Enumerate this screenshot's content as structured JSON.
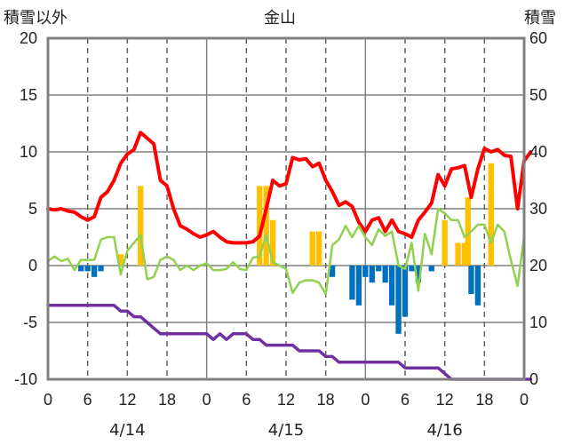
{
  "titles": {
    "left_axis_label": "積雪以外",
    "main_title": "金山",
    "right_axis_label": "積雪"
  },
  "colors": {
    "temperature": "#FF0000",
    "precip_positive": "#FFC000",
    "precip_negative": "#0070C0",
    "green_series": "#92D050",
    "snow_depth": "#7030A0",
    "grid": "#808080"
  },
  "chart_data": {
    "type": "bar",
    "x_ticks": [
      "0",
      "6",
      "12",
      "18",
      "0",
      "6",
      "12",
      "18",
      "0",
      "6",
      "12",
      "18",
      "0"
    ],
    "dates": [
      "4/14",
      "4/15",
      "4/16"
    ],
    "left_axis": {
      "ylim": [
        -10,
        20
      ],
      "ticks": [
        "20",
        "15",
        "10",
        "5",
        "0",
        "-5",
        "-10"
      ]
    },
    "right_axis": {
      "ylim": [
        0,
        60
      ],
      "ticks": [
        "60",
        "50",
        "40",
        "30",
        "20",
        "10",
        "0"
      ]
    },
    "x_range_hours": [
      0,
      72
    ],
    "series": [
      {
        "kind": "bar",
        "axis": "left",
        "color": "#FFC000",
        "points": [
          [
            11,
            1
          ],
          [
            14,
            7
          ],
          [
            32,
            7
          ],
          [
            33,
            7
          ],
          [
            34,
            4
          ],
          [
            40,
            3
          ],
          [
            41,
            3
          ],
          [
            60,
            4
          ],
          [
            62,
            2
          ],
          [
            63,
            2
          ],
          [
            63.5,
            6
          ],
          [
            67,
            9
          ]
        ]
      },
      {
        "kind": "bar",
        "axis": "left",
        "color": "#0070C0",
        "points": [
          [
            5,
            -0.5
          ],
          [
            6,
            -0.5
          ],
          [
            7,
            -1
          ],
          [
            8,
            -0.5
          ],
          [
            43,
            -1
          ],
          [
            46,
            -3
          ],
          [
            47,
            -3.5
          ],
          [
            48,
            -1
          ],
          [
            49,
            -1.5
          ],
          [
            50,
            -0.5
          ],
          [
            51,
            -1.5
          ],
          [
            52,
            -3.5
          ],
          [
            53,
            -6
          ],
          [
            54,
            -4.5
          ],
          [
            55,
            -0.5
          ],
          [
            56,
            -1.5
          ],
          [
            58,
            -0.5
          ],
          [
            64,
            -2.5
          ],
          [
            65,
            -3.5
          ]
        ]
      },
      {
        "kind": "line",
        "axis": "left",
        "color": "#FF0000",
        "width": 4,
        "points": [
          [
            0,
            5
          ],
          [
            1,
            4.9
          ],
          [
            2,
            5
          ],
          [
            3,
            4.8
          ],
          [
            4,
            4.7
          ],
          [
            5,
            4.3
          ],
          [
            6,
            4
          ],
          [
            7,
            4.3
          ],
          [
            8,
            6
          ],
          [
            9,
            6.5
          ],
          [
            10,
            7.5
          ],
          [
            11,
            9
          ],
          [
            12,
            9.8
          ],
          [
            13,
            10.2
          ],
          [
            14,
            11.7
          ],
          [
            15,
            11.2
          ],
          [
            16,
            10.7
          ],
          [
            17,
            7.5
          ],
          [
            18,
            7
          ],
          [
            19,
            5
          ],
          [
            20,
            3.5
          ],
          [
            21,
            3.2
          ],
          [
            22,
            2.8
          ],
          [
            23,
            2.5
          ],
          [
            24,
            2.7
          ],
          [
            25,
            3
          ],
          [
            26,
            2.5
          ],
          [
            27,
            2.1
          ],
          [
            28,
            2
          ],
          [
            29,
            2
          ],
          [
            30,
            2
          ],
          [
            31,
            2.1
          ],
          [
            32,
            2.6
          ],
          [
            33,
            5
          ],
          [
            34,
            7.5
          ],
          [
            35,
            7
          ],
          [
            36,
            7.2
          ],
          [
            37,
            9.5
          ],
          [
            38,
            9.3
          ],
          [
            39,
            9.4
          ],
          [
            40,
            8.7
          ],
          [
            41,
            9
          ],
          [
            42,
            7.5
          ],
          [
            43,
            6.5
          ],
          [
            44,
            5.3
          ],
          [
            45,
            5.6
          ],
          [
            46,
            5.2
          ],
          [
            47,
            3.8
          ],
          [
            48,
            3
          ],
          [
            49,
            4
          ],
          [
            50,
            4.2
          ],
          [
            51,
            3
          ],
          [
            52,
            4
          ],
          [
            53,
            3
          ],
          [
            54,
            2.8
          ],
          [
            55,
            2.5
          ],
          [
            56,
            4
          ],
          [
            57,
            4.7
          ],
          [
            58,
            5.5
          ],
          [
            59,
            8
          ],
          [
            60,
            7
          ],
          [
            61,
            8.5
          ],
          [
            62,
            8.6
          ],
          [
            63,
            8.8
          ],
          [
            64,
            6
          ],
          [
            65,
            8.5
          ],
          [
            66,
            10.3
          ],
          [
            67,
            10
          ],
          [
            68,
            10.2
          ],
          [
            69,
            9.7
          ],
          [
            70,
            9.6
          ],
          [
            71,
            5
          ],
          [
            72,
            9.2
          ],
          [
            73,
            10
          ]
        ]
      },
      {
        "kind": "line",
        "axis": "left",
        "color": "#92D050",
        "width": 2.5,
        "points": [
          [
            0,
            0.4
          ],
          [
            1,
            0.8
          ],
          [
            2,
            0.4
          ],
          [
            3,
            0.6
          ],
          [
            4,
            -0.4
          ],
          [
            5,
            0.5
          ],
          [
            6,
            0.5
          ],
          [
            7,
            0.5
          ],
          [
            8,
            2.3
          ],
          [
            9,
            2.5
          ],
          [
            10,
            2.5
          ],
          [
            11,
            -0.8
          ],
          [
            12,
            1.3
          ],
          [
            13,
            2
          ],
          [
            14,
            2.7
          ],
          [
            15,
            -1.2
          ],
          [
            16,
            -1
          ],
          [
            17,
            0.5
          ],
          [
            18,
            0.8
          ],
          [
            19,
            0.5
          ],
          [
            20,
            -0.4
          ],
          [
            21,
            0
          ],
          [
            22,
            -0.4
          ],
          [
            23,
            0
          ],
          [
            24,
            0.2
          ],
          [
            25,
            -0.4
          ],
          [
            26,
            -0.4
          ],
          [
            27,
            -0.3
          ],
          [
            28,
            0.3
          ],
          [
            29,
            -0.3
          ],
          [
            30,
            -0.4
          ],
          [
            31,
            0.7
          ],
          [
            32,
            0.8
          ],
          [
            33,
            2.7
          ],
          [
            34,
            0.3
          ],
          [
            35,
            0
          ],
          [
            36,
            -0.3
          ],
          [
            37,
            -2.4
          ],
          [
            38,
            -1.5
          ],
          [
            39,
            -1.3
          ],
          [
            40,
            -1.3
          ],
          [
            41,
            -1.5
          ],
          [
            42,
            -2.5
          ],
          [
            43,
            1.8
          ],
          [
            44,
            2.3
          ],
          [
            45,
            3.5
          ],
          [
            46,
            2.5
          ],
          [
            47,
            3.5
          ],
          [
            48,
            2.5
          ],
          [
            49,
            1.8
          ],
          [
            50,
            3.2
          ],
          [
            51,
            2.6
          ],
          [
            52,
            3
          ],
          [
            53,
            0
          ],
          [
            54,
            -0.3
          ],
          [
            55,
            2
          ],
          [
            56,
            -2.2
          ],
          [
            57,
            2.8
          ],
          [
            58,
            1
          ],
          [
            59,
            5
          ],
          [
            60,
            4.6
          ],
          [
            61,
            4
          ],
          [
            62,
            4
          ],
          [
            63,
            2.5
          ],
          [
            64,
            3
          ],
          [
            65,
            3.6
          ],
          [
            66,
            3.6
          ],
          [
            67,
            2
          ],
          [
            68,
            3.6
          ],
          [
            69,
            3
          ],
          [
            70,
            0.5
          ],
          [
            71,
            -1.8
          ],
          [
            72,
            2.6
          ]
        ]
      },
      {
        "kind": "line",
        "axis": "right",
        "color": "#7030A0",
        "width": 3.5,
        "points": [
          [
            0,
            13
          ],
          [
            10,
            13
          ],
          [
            11,
            12
          ],
          [
            12,
            12
          ],
          [
            13,
            11
          ],
          [
            14,
            11
          ],
          [
            15,
            10
          ],
          [
            16,
            9
          ],
          [
            17,
            8
          ],
          [
            24,
            8
          ],
          [
            25,
            7
          ],
          [
            26,
            8
          ],
          [
            27,
            7
          ],
          [
            28,
            8
          ],
          [
            30,
            8
          ],
          [
            31,
            7
          ],
          [
            32,
            7
          ],
          [
            33,
            6
          ],
          [
            37,
            6
          ],
          [
            38,
            5
          ],
          [
            41,
            5
          ],
          [
            42,
            4
          ],
          [
            43,
            4
          ],
          [
            44,
            3
          ],
          [
            53,
            3
          ],
          [
            54,
            2
          ],
          [
            59,
            2
          ],
          [
            60,
            1
          ],
          [
            61,
            0
          ],
          [
            73,
            0
          ]
        ]
      }
    ]
  }
}
